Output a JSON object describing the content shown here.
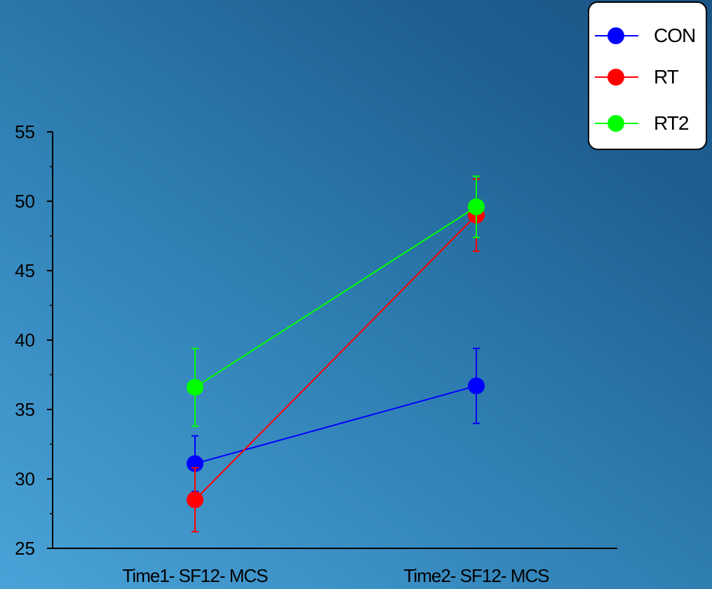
{
  "chart_data": {
    "type": "line",
    "categories": [
      "Time1- SF12- MCS",
      "Time2- SF12- MCS"
    ],
    "ylim": [
      25,
      55
    ],
    "yticks": [
      25,
      30,
      35,
      40,
      45,
      50,
      55
    ],
    "series": [
      {
        "name": "CON",
        "color": "#0000ff",
        "values": [
          31.1,
          36.7
        ],
        "err": [
          2.0,
          2.7
        ]
      },
      {
        "name": "RT",
        "color": "#ff0000",
        "values": [
          28.5,
          49.0
        ],
        "err": [
          2.3,
          2.6
        ]
      },
      {
        "name": "RT2",
        "color": "#00ff00",
        "values": [
          36.6,
          49.6
        ],
        "err": [
          2.8,
          2.2
        ]
      }
    ],
    "legend_position": "top-right",
    "grid": false
  }
}
